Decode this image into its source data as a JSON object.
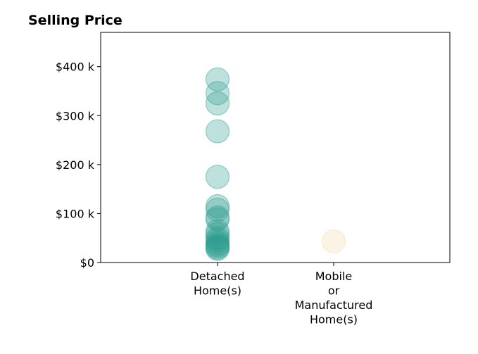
{
  "chart_data": {
    "type": "scatter",
    "title": "Selling Price",
    "xlabel": "",
    "ylabel": "",
    "categories": [
      [
        "Detached",
        "Home(s)"
      ],
      [
        "Mobile",
        "or",
        "Manufactured",
        "Home(s)"
      ]
    ],
    "y_ticks": [
      {
        "value": 0,
        "label": "$0"
      },
      {
        "value": 100000,
        "label": "$100 k"
      },
      {
        "value": 200000,
        "label": "$200 k"
      },
      {
        "value": 300000,
        "label": "$300 k"
      },
      {
        "value": 400000,
        "label": "$400 k"
      }
    ],
    "ylim": [
      0,
      470000
    ],
    "grid": false,
    "series": [
      {
        "category": 0,
        "color": "#2a9d8f",
        "values": [
          374000,
          346000,
          325000,
          268000,
          175000,
          115000,
          108000,
          92000,
          88000,
          64000,
          58000,
          50000,
          45000,
          40000,
          36000,
          33000,
          30000,
          28000
        ]
      },
      {
        "category": 1,
        "color": "#f1d9a6",
        "values": [
          43000
        ]
      }
    ]
  }
}
